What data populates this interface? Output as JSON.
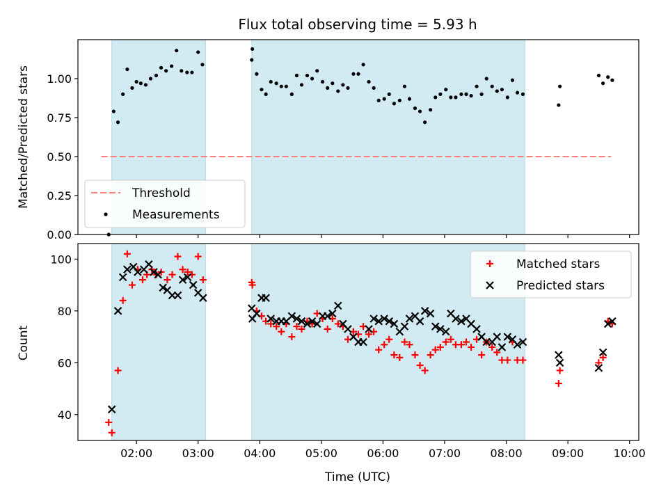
{
  "chart_data": [
    {
      "type": "scatter",
      "title": "Flux total observing time = 5.93 h",
      "xlabel": "",
      "ylabel": "Matched/Predicted stars",
      "ylim": [
        0,
        1.25
      ],
      "xlim": [
        1.05,
        10.15
      ],
      "yticks": [
        0.0,
        0.25,
        0.5,
        0.75,
        1.0
      ],
      "ytick_labels": [
        "0.00",
        "0.25",
        "0.50",
        "0.75",
        "1.00"
      ],
      "shaded_spans": [
        [
          1.6,
          3.12
        ],
        [
          3.87,
          8.3
        ]
      ],
      "shade_color": "#add8e6",
      "legend": {
        "position": "bottom-left",
        "entries": [
          "Threshold",
          "Measurements"
        ]
      },
      "threshold": {
        "name": "Threshold",
        "y": 0.5,
        "x_start": 1.43,
        "x_end": 9.7,
        "color": "#ff7f7f",
        "dash": true
      },
      "series": [
        {
          "name": "Measurements",
          "color": "#000000",
          "marker": "dot",
          "points": [
            [
              1.55,
              0.0
            ],
            [
              1.63,
              0.79
            ],
            [
              1.7,
              0.72
            ],
            [
              1.78,
              0.9
            ],
            [
              1.85,
              1.06
            ],
            [
              1.93,
              0.94
            ],
            [
              2.0,
              0.98
            ],
            [
              2.07,
              0.97
            ],
            [
              2.15,
              0.96
            ],
            [
              2.23,
              1.0
            ],
            [
              2.32,
              1.02
            ],
            [
              2.4,
              1.07
            ],
            [
              2.48,
              1.05
            ],
            [
              2.57,
              1.08
            ],
            [
              2.65,
              1.18
            ],
            [
              2.73,
              1.05
            ],
            [
              2.82,
              1.04
            ],
            [
              2.9,
              1.04
            ],
            [
              3.0,
              1.17
            ],
            [
              3.07,
              1.09
            ],
            [
              3.87,
              1.12
            ],
            [
              3.88,
              1.19
            ],
            [
              3.95,
              1.03
            ],
            [
              4.03,
              0.93
            ],
            [
              4.1,
              0.9
            ],
            [
              4.18,
              0.98
            ],
            [
              4.27,
              0.97
            ],
            [
              4.35,
              0.95
            ],
            [
              4.43,
              0.95
            ],
            [
              4.52,
              0.9
            ],
            [
              4.6,
              1.02
            ],
            [
              4.68,
              0.96
            ],
            [
              4.77,
              1.02
            ],
            [
              4.85,
              1.0
            ],
            [
              4.93,
              1.05
            ],
            [
              5.02,
              0.98
            ],
            [
              5.1,
              0.94
            ],
            [
              5.18,
              0.97
            ],
            [
              5.27,
              0.92
            ],
            [
              5.35,
              0.96
            ],
            [
              5.43,
              0.94
            ],
            [
              5.52,
              1.03
            ],
            [
              5.6,
              1.03
            ],
            [
              5.68,
              1.09
            ],
            [
              5.77,
              0.98
            ],
            [
              5.85,
              0.94
            ],
            [
              5.93,
              0.86
            ],
            [
              6.02,
              0.87
            ],
            [
              6.1,
              0.9
            ],
            [
              6.18,
              0.84
            ],
            [
              6.27,
              0.86
            ],
            [
              6.35,
              0.95
            ],
            [
              6.43,
              0.87
            ],
            [
              6.52,
              0.81
            ],
            [
              6.6,
              0.79
            ],
            [
              6.68,
              0.72
            ],
            [
              6.77,
              0.8
            ],
            [
              6.85,
              0.88
            ],
            [
              6.93,
              0.9
            ],
            [
              7.02,
              0.93
            ],
            [
              7.1,
              0.88
            ],
            [
              7.18,
              0.88
            ],
            [
              7.27,
              0.9
            ],
            [
              7.35,
              0.9
            ],
            [
              7.43,
              0.89
            ],
            [
              7.52,
              0.95
            ],
            [
              7.6,
              0.9
            ],
            [
              7.68,
              1.0
            ],
            [
              7.77,
              0.95
            ],
            [
              7.85,
              0.92
            ],
            [
              7.93,
              0.93
            ],
            [
              8.02,
              0.88
            ],
            [
              8.1,
              0.99
            ],
            [
              8.18,
              0.91
            ],
            [
              8.27,
              0.9
            ],
            [
              8.85,
              0.83
            ],
            [
              8.87,
              0.95
            ],
            [
              9.5,
              1.02
            ],
            [
              9.57,
              0.97
            ],
            [
              9.65,
              1.01
            ],
            [
              9.72,
              0.99
            ]
          ]
        }
      ]
    },
    {
      "type": "scatter",
      "title": "",
      "xlabel": "Time (UTC)",
      "ylabel": "Count",
      "ylim": [
        30,
        106
      ],
      "xlim": [
        1.05,
        10.15
      ],
      "yticks": [
        40,
        60,
        80,
        100
      ],
      "ytick_labels": [
        "40",
        "60",
        "80",
        "100"
      ],
      "xticks": [
        2,
        3,
        4,
        5,
        6,
        7,
        8,
        9,
        10
      ],
      "xtick_labels": [
        "02:00",
        "03:00",
        "04:00",
        "05:00",
        "06:00",
        "07:00",
        "08:00",
        "09:00",
        "10:00"
      ],
      "shaded_spans": [
        [
          1.6,
          3.12
        ],
        [
          3.87,
          8.3
        ]
      ],
      "shade_color": "#add8e6",
      "legend": {
        "position": "top-right",
        "entries": [
          "Matched stars",
          "Predicted stars"
        ]
      },
      "series": [
        {
          "name": "Matched stars",
          "color": "#ff0000",
          "marker": "plus",
          "points": [
            [
              1.55,
              37
            ],
            [
              1.6,
              33
            ],
            [
              1.7,
              57
            ],
            [
              1.78,
              84
            ],
            [
              1.85,
              102
            ],
            [
              1.93,
              90
            ],
            [
              2.02,
              96
            ],
            [
              2.1,
              92
            ],
            [
              2.17,
              94
            ],
            [
              2.25,
              96
            ],
            [
              2.32,
              94
            ],
            [
              2.4,
              95
            ],
            [
              2.5,
              92
            ],
            [
              2.58,
              94
            ],
            [
              2.67,
              101
            ],
            [
              2.75,
              96
            ],
            [
              2.83,
              95
            ],
            [
              2.9,
              94
            ],
            [
              3.0,
              101
            ],
            [
              3.08,
              92
            ],
            [
              3.87,
              91
            ],
            [
              3.88,
              90
            ],
            [
              3.95,
              80
            ],
            [
              4.03,
              78
            ],
            [
              4.1,
              76
            ],
            [
              4.18,
              75
            ],
            [
              4.27,
              74
            ],
            [
              4.35,
              72
            ],
            [
              4.43,
              75
            ],
            [
              4.52,
              70
            ],
            [
              4.6,
              74
            ],
            [
              4.68,
              73
            ],
            [
              4.77,
              76
            ],
            [
              4.85,
              75
            ],
            [
              4.93,
              79
            ],
            [
              5.02,
              77
            ],
            [
              5.1,
              73
            ],
            [
              5.18,
              77
            ],
            [
              5.27,
              75
            ],
            [
              5.35,
              74
            ],
            [
              5.43,
              69
            ],
            [
              5.52,
              72
            ],
            [
              5.6,
              71
            ],
            [
              5.68,
              74
            ],
            [
              5.77,
              71
            ],
            [
              5.85,
              72
            ],
            [
              5.93,
              65
            ],
            [
              6.02,
              67
            ],
            [
              6.1,
              69
            ],
            [
              6.18,
              63
            ],
            [
              6.27,
              62
            ],
            [
              6.35,
              68
            ],
            [
              6.43,
              67
            ],
            [
              6.52,
              63
            ],
            [
              6.6,
              59
            ],
            [
              6.68,
              57
            ],
            [
              6.77,
              63
            ],
            [
              6.85,
              65
            ],
            [
              6.93,
              66
            ],
            [
              7.02,
              68
            ],
            [
              7.1,
              69
            ],
            [
              7.18,
              67
            ],
            [
              7.27,
              67
            ],
            [
              7.35,
              68
            ],
            [
              7.43,
              66
            ],
            [
              7.52,
              69
            ],
            [
              7.6,
              63
            ],
            [
              7.68,
              68
            ],
            [
              7.77,
              66
            ],
            [
              7.85,
              64
            ],
            [
              7.93,
              61
            ],
            [
              8.02,
              61
            ],
            [
              8.1,
              68
            ],
            [
              8.18,
              61
            ],
            [
              8.27,
              61
            ],
            [
              8.85,
              52
            ],
            [
              8.87,
              57
            ],
            [
              9.5,
              60
            ],
            [
              9.57,
              62
            ],
            [
              9.65,
              76
            ],
            [
              9.72,
              75
            ]
          ]
        },
        {
          "name": "Predicted stars",
          "color": "#000000",
          "marker": "cross",
          "points": [
            [
              1.6,
              42
            ],
            [
              1.7,
              80
            ],
            [
              1.78,
              93
            ],
            [
              1.85,
              96
            ],
            [
              1.95,
              97
            ],
            [
              2.02,
              95
            ],
            [
              2.12,
              96
            ],
            [
              2.2,
              98
            ],
            [
              2.28,
              95
            ],
            [
              2.35,
              94
            ],
            [
              2.43,
              89
            ],
            [
              2.5,
              88
            ],
            [
              2.58,
              86
            ],
            [
              2.67,
              86
            ],
            [
              2.75,
              92
            ],
            [
              2.83,
              93
            ],
            [
              2.92,
              90
            ],
            [
              3.0,
              87
            ],
            [
              3.08,
              85
            ],
            [
              3.87,
              81
            ],
            [
              3.88,
              77
            ],
            [
              3.95,
              79
            ],
            [
              4.03,
              85
            ],
            [
              4.1,
              85
            ],
            [
              4.18,
              77
            ],
            [
              4.27,
              76
            ],
            [
              4.35,
              76
            ],
            [
              4.43,
              76
            ],
            [
              4.52,
              78
            ],
            [
              4.6,
              77
            ],
            [
              4.68,
              76
            ],
            [
              4.77,
              75
            ],
            [
              4.85,
              76
            ],
            [
              4.93,
              75
            ],
            [
              5.02,
              78
            ],
            [
              5.1,
              78
            ],
            [
              5.18,
              79
            ],
            [
              5.27,
              82
            ],
            [
              5.35,
              75
            ],
            [
              5.43,
              73
            ],
            [
              5.52,
              70
            ],
            [
              5.6,
              68
            ],
            [
              5.68,
              68
            ],
            [
              5.77,
              73
            ],
            [
              5.85,
              77
            ],
            [
              5.93,
              76
            ],
            [
              6.02,
              77
            ],
            [
              6.1,
              76
            ],
            [
              6.18,
              75
            ],
            [
              6.27,
              72
            ],
            [
              6.35,
              74
            ],
            [
              6.43,
              77
            ],
            [
              6.52,
              78
            ],
            [
              6.6,
              76
            ],
            [
              6.68,
              80
            ],
            [
              6.77,
              79
            ],
            [
              6.85,
              74
            ],
            [
              6.93,
              73
            ],
            [
              7.02,
              72
            ],
            [
              7.1,
              79
            ],
            [
              7.18,
              77
            ],
            [
              7.27,
              76
            ],
            [
              7.35,
              77
            ],
            [
              7.43,
              75
            ],
            [
              7.52,
              73
            ],
            [
              7.6,
              70
            ],
            [
              7.68,
              68
            ],
            [
              7.77,
              68
            ],
            [
              7.85,
              70
            ],
            [
              7.93,
              66
            ],
            [
              8.02,
              70
            ],
            [
              8.1,
              69
            ],
            [
              8.18,
              67
            ],
            [
              8.27,
              68
            ],
            [
              8.85,
              63
            ],
            [
              8.87,
              60
            ],
            [
              9.5,
              58
            ],
            [
              9.57,
              64
            ],
            [
              9.65,
              75
            ],
            [
              9.72,
              76
            ]
          ]
        }
      ]
    }
  ]
}
